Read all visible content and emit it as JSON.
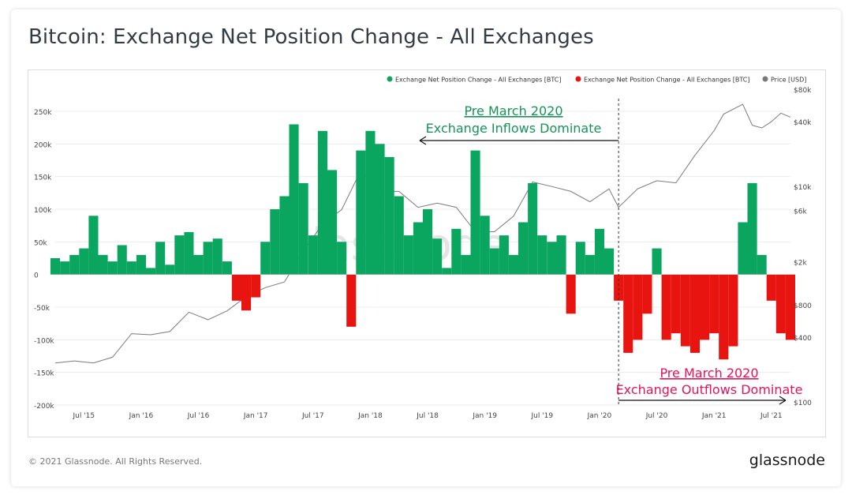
{
  "title": "Bitcoin: Exchange Net Position Change - All Exchanges",
  "footer": {
    "copyright": "© 2021 Glassnode. All Rights Reserved.",
    "logo": "glassnode",
    "watermark": "glassnode"
  },
  "colors": {
    "inflow": "#0aa660",
    "outflow": "#e8140f",
    "price": "#7a7a7a",
    "annotation_green": "#17935a",
    "annotation_red": "#e6135a",
    "grid": "#ececec",
    "axis_text": "#444444"
  },
  "legend": [
    {
      "name": "Exchange Net Position Change - All Exchanges [BTC]",
      "color": "#0aa660"
    },
    {
      "name": "Exchange Net Position Change - All Exchanges [BTC]",
      "color": "#e8140f"
    },
    {
      "name": "Price [USD]",
      "color": "#7a7a7a"
    }
  ],
  "annotations": {
    "inflow_line1": "Pre March 2020",
    "inflow_line2": "Exchange Inflows Dominate",
    "outflow_line1": "Pre March 2020",
    "outflow_line2": "Exchange Outflows Dominate"
  },
  "chart_data": {
    "type": "area",
    "legend_position": "top-right",
    "grid": true,
    "x_tick_labels": [
      "Jul '15",
      "Jan '16",
      "Jul '16",
      "Jan '17",
      "Jul '17",
      "Jan '18",
      "Jul '18",
      "Jan '19",
      "Jul '19",
      "Jan '20",
      "Jul '20",
      "Jan '21",
      "Jul '21"
    ],
    "x_range": [
      "2015-04",
      "2021-09"
    ],
    "y_left": {
      "label": "",
      "ticks": [
        "250k",
        "200k",
        "150k",
        "100k",
        "50k",
        "0",
        "-50k",
        "-100k",
        "-150k",
        "-200k"
      ],
      "values": [
        250000,
        200000,
        150000,
        100000,
        50000,
        0,
        -50000,
        -100000,
        -150000,
        -200000
      ],
      "range": [
        -200000,
        250000
      ]
    },
    "y_right": {
      "label": "",
      "scale": "log",
      "ticks": [
        "$80k",
        "$40k",
        "$10k",
        "$6k",
        "$2k",
        "$800",
        "$400",
        "$100"
      ],
      "values": [
        80000,
        40000,
        10000,
        6000,
        2000,
        800,
        400,
        100
      ]
    },
    "divider_date": "2020-03",
    "series": [
      {
        "name": "Exchange Net Position Change - All Exchanges [BTC]",
        "note": "monthly approximate values (BTC)",
        "x": [
          "2015-04",
          "2015-05",
          "2015-06",
          "2015-07",
          "2015-08",
          "2015-09",
          "2015-10",
          "2015-11",
          "2015-12",
          "2016-01",
          "2016-02",
          "2016-03",
          "2016-04",
          "2016-05",
          "2016-06",
          "2016-07",
          "2016-08",
          "2016-09",
          "2016-10",
          "2016-11",
          "2016-12",
          "2017-01",
          "2017-02",
          "2017-03",
          "2017-04",
          "2017-05",
          "2017-06",
          "2017-07",
          "2017-08",
          "2017-09",
          "2017-10",
          "2017-11",
          "2017-12",
          "2018-01",
          "2018-02",
          "2018-03",
          "2018-04",
          "2018-05",
          "2018-06",
          "2018-07",
          "2018-08",
          "2018-09",
          "2018-10",
          "2018-11",
          "2018-12",
          "2019-01",
          "2019-02",
          "2019-03",
          "2019-04",
          "2019-05",
          "2019-06",
          "2019-07",
          "2019-08",
          "2019-09",
          "2019-10",
          "2019-11",
          "2019-12",
          "2020-01",
          "2020-02",
          "2020-03",
          "2020-04",
          "2020-05",
          "2020-06",
          "2020-07",
          "2020-08",
          "2020-09",
          "2020-10",
          "2020-11",
          "2020-12",
          "2021-01",
          "2021-02",
          "2021-03",
          "2021-04",
          "2021-05",
          "2021-06",
          "2021-07",
          "2021-08",
          "2021-09"
        ],
        "values": [
          25000,
          20000,
          30000,
          40000,
          90000,
          30000,
          20000,
          45000,
          20000,
          30000,
          10000,
          50000,
          15000,
          60000,
          65000,
          30000,
          50000,
          55000,
          20000,
          -40000,
          -55000,
          -35000,
          50000,
          100000,
          120000,
          230000,
          140000,
          60000,
          220000,
          160000,
          50000,
          -80000,
          190000,
          220000,
          200000,
          180000,
          120000,
          60000,
          80000,
          100000,
          55000,
          10000,
          70000,
          30000,
          190000,
          90000,
          40000,
          60000,
          30000,
          80000,
          140000,
          60000,
          50000,
          60000,
          -60000,
          50000,
          30000,
          70000,
          40000,
          -40000,
          -120000,
          -100000,
          -60000,
          40000,
          -100000,
          -90000,
          -110000,
          -120000,
          -100000,
          -90000,
          -130000,
          -110000,
          80000,
          140000,
          30000,
          -40000,
          -90000,
          -100000
        ]
      },
      {
        "name": "Price [USD]",
        "note": "monthly approximate close (USD)",
        "x": [
          "2015-04",
          "2015-06",
          "2015-08",
          "2015-10",
          "2015-12",
          "2016-02",
          "2016-04",
          "2016-06",
          "2016-08",
          "2016-10",
          "2016-12",
          "2017-02",
          "2017-04",
          "2017-06",
          "2017-08",
          "2017-10",
          "2017-12",
          "2018-02",
          "2018-04",
          "2018-06",
          "2018-08",
          "2018-10",
          "2018-12",
          "2019-02",
          "2019-04",
          "2019-06",
          "2019-08",
          "2019-10",
          "2019-12",
          "2020-02",
          "2020-03",
          "2020-05",
          "2020-07",
          "2020-09",
          "2020-11",
          "2021-01",
          "2021-02",
          "2021-04",
          "2021-05",
          "2021-06",
          "2021-07",
          "2021-08",
          "2021-09"
        ],
        "values": [
          230,
          240,
          230,
          260,
          430,
          420,
          450,
          680,
          580,
          700,
          950,
          1150,
          1300,
          2500,
          4500,
          6100,
          14000,
          9000,
          9000,
          6400,
          7000,
          6400,
          3800,
          3800,
          5300,
          11000,
          10000,
          9000,
          7200,
          9500,
          6400,
          9500,
          11300,
          10800,
          19500,
          33000,
          47000,
          58000,
          37000,
          35000,
          40000,
          48000,
          44000
        ]
      }
    ]
  }
}
